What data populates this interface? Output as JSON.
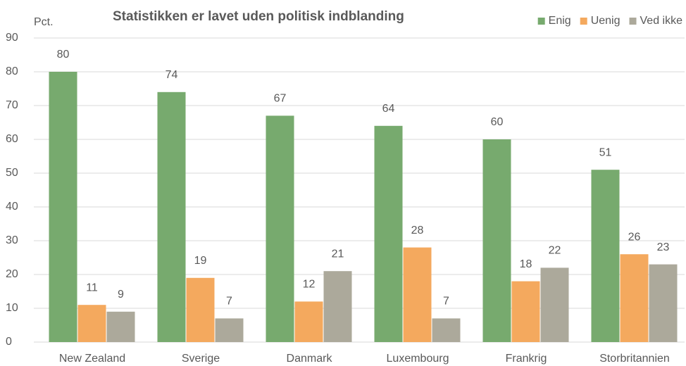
{
  "chart_data": {
    "type": "bar",
    "title": "Statistikken er lavet uden politisk indblanding",
    "y_label": "Pct.",
    "categories": [
      "New Zealand",
      "Sverige",
      "Danmark",
      "Luxembourg",
      "Frankrig",
      "Storbritannien"
    ],
    "series": [
      {
        "name": "Enig",
        "color": "#77aa6e",
        "values": [
          80,
          74,
          67,
          64,
          60,
          51
        ]
      },
      {
        "name": "Uenig",
        "color": "#f4a95e",
        "values": [
          11,
          19,
          12,
          28,
          18,
          26
        ]
      },
      {
        "name": "Ved ikke",
        "color": "#aca99b",
        "values": [
          9,
          7,
          21,
          7,
          22,
          23
        ]
      }
    ],
    "ylim": [
      0,
      90
    ],
    "yticks": [
      0,
      10,
      20,
      30,
      40,
      50,
      60,
      70,
      80,
      90
    ],
    "grid": true,
    "legend": "top-right"
  }
}
